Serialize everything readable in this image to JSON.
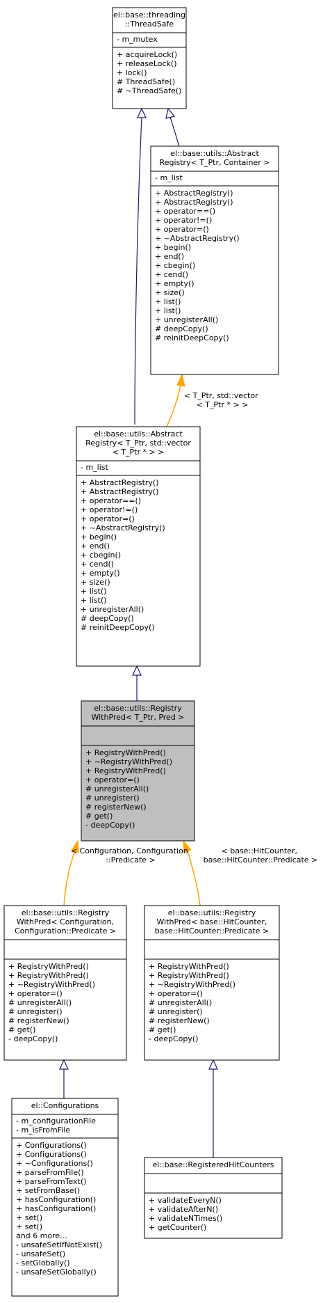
{
  "diagram": {
    "classes": {
      "threadsafe": {
        "title": [
          "el::base::threading",
          "::ThreadSafe"
        ],
        "attributes": [
          "- m_mutex"
        ],
        "methods": [
          "+ acquireLock()",
          "+ releaseLock()",
          "+ lock()",
          "# ThreadSafe()",
          "# ~ThreadSafe()"
        ]
      },
      "abstract_container": {
        "title": [
          "el::base::utils::Abstract",
          "Registry< T_Ptr, Container >"
        ],
        "attributes": [
          "- m_list"
        ],
        "methods": [
          "+ AbstractRegistry()",
          "+ AbstractRegistry()",
          "+ operator==()",
          "+ operator!=()",
          "+ operator=()",
          "+ ~AbstractRegistry()",
          "+ begin()",
          "+ end()",
          "+ cbegin()",
          "+ cend()",
          "+ empty()",
          "+ size()",
          "+ list()",
          "+ list()",
          "+ unregisterAll()",
          "# deepCopy()",
          "# reinitDeepCopy()"
        ]
      },
      "abstract_vector": {
        "title": [
          "el::base::utils::Abstract",
          "Registry< T_Ptr, std::vector",
          "< T_Ptr * > >"
        ],
        "attributes": [
          "- m_list"
        ],
        "methods": [
          "+ AbstractRegistry()",
          "+ AbstractRegistry()",
          "+ operator==()",
          "+ operator!=()",
          "+ operator=()",
          "+ ~AbstractRegistry()",
          "+ begin()",
          "+ end()",
          "+ cbegin()",
          "+ cend()",
          "+ empty()",
          "+ size()",
          "+ list()",
          "+ list()",
          "+ unregisterAll()",
          "# deepCopy()",
          "# reinitDeepCopy()"
        ]
      },
      "registry_with_pred": {
        "title": [
          "el::base::utils::Registry",
          "WithPred< T_Ptr, Pred >"
        ],
        "attributes": [],
        "methods": [
          "+ RegistryWithPred()",
          "+ ~RegistryWithPred()",
          "+ RegistryWithPred()",
          "+ operator=()",
          "# unregisterAll()",
          "# unregister()",
          "# registerNew()",
          "# get()",
          "- deepCopy()"
        ]
      },
      "registry_config": {
        "title": [
          "el::base::utils::Registry",
          "WithPred< Configuration,",
          "Configuration::Predicate >"
        ],
        "attributes": [],
        "methods": [
          "+ RegistryWithPred()",
          "+ RegistryWithPred()",
          "+ ~RegistryWithPred()",
          "+ operator=()",
          "# unregisterAll()",
          "# unregister()",
          "# registerNew()",
          "# get()",
          "- deepCopy()"
        ]
      },
      "registry_hitcounter": {
        "title": [
          "el::base::utils::Registry",
          "WithPred< base::HitCounter,",
          "base::HitCounter::Predicate >"
        ],
        "attributes": [],
        "methods": [
          "+ RegistryWithPred()",
          "+ RegistryWithPred()",
          "+ ~RegistryWithPred()",
          "+ operator=()",
          "# unregisterAll()",
          "# unregister()",
          "# registerNew()",
          "# get()",
          "- deepCopy()"
        ]
      },
      "configurations": {
        "title": [
          "el::Configurations"
        ],
        "attributes": [
          "- m_configurationFile",
          "- m_isFromFile"
        ],
        "methods": [
          "+ Configurations()",
          "+ Configurations()",
          "+ ~Configurations()",
          "+ parseFromFile()",
          "+ parseFromText()",
          "+ setFromBase()",
          "+ hasConfiguration()",
          "+ hasConfiguration()",
          "+ set()",
          "+ set()",
          "and 6 more...",
          "- unsafeSetIfNotExist()",
          "- unsafeSet()",
          "- setGlobally()",
          "- unsafeSetGlobally()"
        ]
      },
      "registered_hitcounters": {
        "title": [
          "el::base::RegisteredHitCounters"
        ],
        "attributes": [],
        "methods": [
          "+ validateEveryN()",
          "+ validateAfterN()",
          "+ validateNTimes()",
          "+ getCounter()"
        ]
      }
    },
    "edge_labels": {
      "template_vector": [
        "< T_Ptr, std::vector",
        "< T_Ptr * > >"
      ],
      "template_config": [
        "< Configuration, Configuration",
        "::Predicate >"
      ],
      "template_hitcounter": [
        "< base::HitCounter,",
        "base::HitCounter::Predicate >"
      ]
    },
    "colors": {
      "inheritance_edge": "#191970",
      "template_edge": "#ffa500",
      "highlight_fill": "#bfbfbf",
      "box_fill": "#ffffff",
      "box_stroke": "#000000"
    }
  }
}
